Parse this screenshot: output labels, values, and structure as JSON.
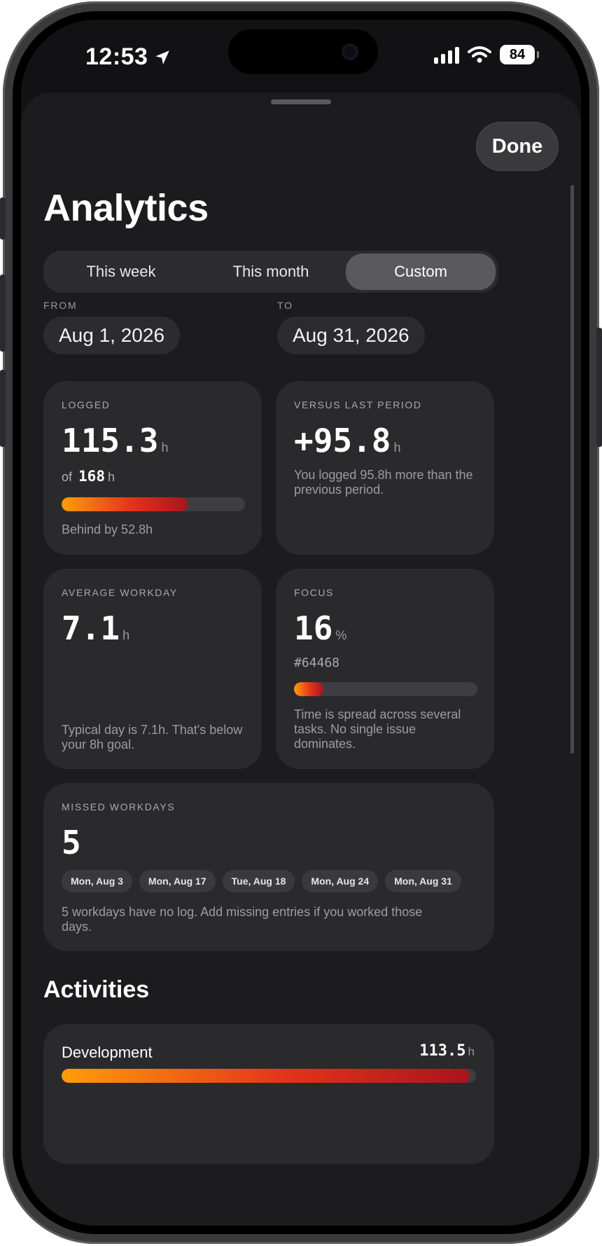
{
  "status": {
    "time": "12:53",
    "battery": "84"
  },
  "header": {
    "done_label": "Done",
    "title": "Analytics"
  },
  "range_tabs": [
    {
      "label": "This week",
      "active": false
    },
    {
      "label": "This month",
      "active": false
    },
    {
      "label": "Custom",
      "active": true
    }
  ],
  "date_range": {
    "from_label": "FROM",
    "from_value": "Aug 1, 2026",
    "to_label": "TO",
    "to_value": "Aug 31, 2026"
  },
  "logged": {
    "label": "LOGGED",
    "value": "115.3",
    "unit": "h",
    "of_prefix": "of",
    "target": "168",
    "target_unit": "h",
    "progress": 0.686,
    "note": "Behind by 52.8h"
  },
  "versus": {
    "label": "VERSUS LAST PERIOD",
    "value": "+95.8",
    "unit": "h",
    "note": "You logged 95.8h more than the previous period."
  },
  "average": {
    "label": "AVERAGE WORKDAY",
    "value": "7.1",
    "unit": "h",
    "note": "Typical day is 7.1h. That's below your 8h goal."
  },
  "focus": {
    "label": "FOCUS",
    "value": "16",
    "unit": "%",
    "issue": "#64468",
    "progress": 0.16,
    "note": "Time is spread across several tasks. No single issue dominates."
  },
  "missed": {
    "label": "MISSED WORKDAYS",
    "count": "5",
    "days": [
      "Mon, Aug 3",
      "Mon, Aug 17",
      "Tue, Aug 18",
      "Mon, Aug 24",
      "Mon, Aug 31"
    ],
    "note": "5 workdays have no log. Add missing entries if you worked those days."
  },
  "activities": {
    "title": "Activities",
    "items": [
      {
        "name": "Development",
        "value": "113.5",
        "unit": "h",
        "progress": 0.985
      }
    ]
  },
  "colors": {
    "accent_start": "#ff9d0a",
    "accent_mid": "#e3341b",
    "accent_end": "#a8141c",
    "sheet_bg": "#1c1c1e",
    "card_bg": "#2a2a2c"
  },
  "icons": [
    "location-arrow-icon",
    "cellular-signal-icon",
    "wifi-icon",
    "battery-icon"
  ]
}
